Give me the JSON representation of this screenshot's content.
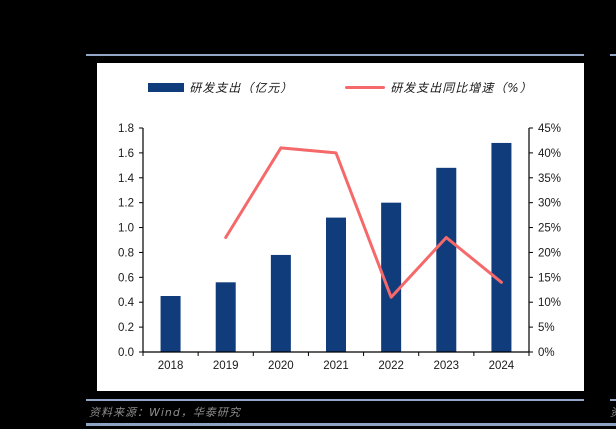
{
  "panel": {
    "source_note": "资料来源：Wind，华泰研究",
    "adjacent_footer_fragment": "资"
  },
  "colors": {
    "bar": "#113c7c",
    "line": "#f5696a",
    "separator": "#93a7c9",
    "bottom_rule": "#8da3c4",
    "axis": "#000000",
    "tick_text": "#1a1a1a",
    "footer_text": "#8e8e8e",
    "panel_bg": "#ffffff",
    "page_bg": "#000000"
  },
  "chart_data": {
    "type": "bar+line",
    "title": "",
    "categories": [
      "2018",
      "2019",
      "2020",
      "2021",
      "2022",
      "2023",
      "2024"
    ],
    "series": [
      {
        "name": "研发支出（亿元）",
        "type": "bar",
        "axis": "left",
        "values": [
          0.45,
          0.56,
          0.78,
          1.08,
          1.2,
          1.48,
          1.68
        ]
      },
      {
        "name": "研发支出同比增速（%）",
        "type": "line",
        "axis": "right",
        "values": [
          null,
          23,
          41,
          40,
          11,
          23,
          14
        ]
      }
    ],
    "left_axis": {
      "min": 0,
      "max": 1.8,
      "step": 0.2,
      "tick_labels": [
        "0.0",
        "0.2",
        "0.4",
        "0.6",
        "0.8",
        "1.0",
        "1.2",
        "1.4",
        "1.6",
        "1.8"
      ]
    },
    "right_axis": {
      "min": 0,
      "max": 45,
      "step": 5,
      "tick_labels": [
        "0%",
        "5%",
        "10%",
        "15%",
        "20%",
        "25%",
        "30%",
        "35%",
        "40%",
        "45%"
      ]
    },
    "legend_position": "top",
    "grid": false
  }
}
